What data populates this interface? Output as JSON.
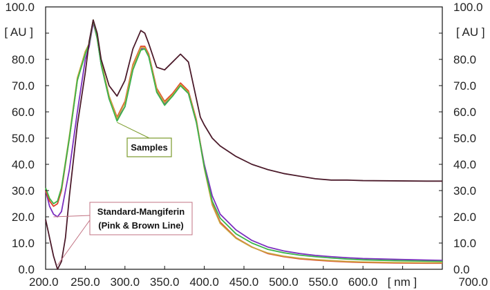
{
  "chart_data": {
    "type": "line",
    "xlim": [
      200,
      700
    ],
    "ylim": [
      0,
      100
    ],
    "x_ticks": [
      "200.0",
      "250.0",
      "300.0",
      "350.0",
      "400.0",
      "450.0",
      "500.0",
      "550.0",
      "600.0",
      "700.0"
    ],
    "x_tick_values": [
      200,
      250,
      300,
      350,
      400,
      450,
      500,
      550,
      600,
      700
    ],
    "y_ticks": [
      "0.0",
      "10.0",
      "20.0",
      "30.0",
      "40.0",
      "50.0",
      "60.0",
      "70.0",
      "80.0",
      "90.0",
      "100.0"
    ],
    "y_tick_values": [
      0,
      10,
      20,
      30,
      40,
      50,
      60,
      70,
      80,
      90,
      100
    ],
    "x_unit": "[ nm ]",
    "x_unit_position": 650,
    "y_unit_left": "[ AU ]",
    "y_unit_right": "[ AU ]",
    "y_unit_position": 90,
    "grid": false,
    "series": [
      {
        "color": "#4b1a2a",
        "x": [
          200,
          205,
          210,
          215,
          220,
          225,
          230,
          240,
          250,
          255,
          260,
          265,
          270,
          280,
          290,
          300,
          310,
          320,
          325,
          330,
          340,
          350,
          360,
          370,
          380,
          390,
          395,
          400,
          410,
          420,
          440,
          460,
          480,
          500,
          520,
          540,
          560,
          580,
          600,
          640,
          680,
          700
        ],
        "y": [
          19,
          12,
          5,
          0,
          3,
          12,
          28,
          55,
          75,
          87,
          95,
          90,
          80,
          70,
          66,
          72,
          84,
          91,
          90,
          86,
          77,
          76,
          79,
          82,
          79,
          65,
          58,
          55,
          50,
          47,
          43,
          40,
          38,
          36.5,
          35.5,
          34.5,
          34,
          34,
          33.8,
          33.7,
          33.6,
          33.6
        ]
      },
      {
        "color": "#7b2fbf",
        "x": [
          200,
          205,
          210,
          215,
          220,
          230,
          240,
          250,
          255,
          260,
          265,
          270,
          280,
          290,
          300,
          310,
          320,
          325,
          330,
          340,
          350,
          360,
          370,
          380,
          390,
          400,
          410,
          420,
          440,
          460,
          480,
          500,
          520,
          540,
          560,
          580,
          600,
          640,
          680,
          700
        ],
        "y": [
          30,
          24,
          21,
          20,
          22,
          38,
          60,
          80,
          85,
          94,
          88,
          78,
          65,
          57,
          62,
          76,
          84,
          84,
          81,
          68,
          63,
          66,
          70,
          67,
          56,
          40,
          28,
          21,
          15,
          11,
          8.5,
          7,
          6,
          5.3,
          4.8,
          4.4,
          4.1,
          3.8,
          3.5,
          3.4
        ]
      },
      {
        "color": "#e0402a",
        "x": [
          200,
          205,
          210,
          215,
          220,
          230,
          240,
          250,
          255,
          260,
          265,
          270,
          280,
          290,
          300,
          310,
          320,
          325,
          330,
          340,
          350,
          360,
          370,
          380,
          390,
          400,
          410,
          420,
          440,
          460,
          480,
          500,
          520,
          540,
          560,
          580,
          600,
          640,
          680,
          700
        ],
        "y": [
          30,
          26,
          24,
          25,
          30,
          50,
          72,
          83,
          86,
          95,
          88,
          79,
          66,
          58,
          64,
          78,
          85,
          85,
          82,
          69,
          64,
          67,
          71,
          68,
          57,
          39,
          25,
          18,
          12,
          8.5,
          6,
          4.8,
          4,
          3.5,
          3.1,
          2.8,
          2.6,
          2.4,
          2.3,
          2.3
        ]
      },
      {
        "color": "#c9a640",
        "x": [
          200,
          205,
          210,
          215,
          220,
          230,
          240,
          250,
          255,
          260,
          265,
          270,
          280,
          290,
          300,
          310,
          320,
          325,
          330,
          340,
          350,
          360,
          370,
          380,
          390,
          400,
          410,
          420,
          440,
          460,
          480,
          500,
          520,
          540,
          560,
          580,
          600,
          640,
          680,
          700
        ],
        "y": [
          31,
          27,
          25,
          26,
          31,
          51,
          73,
          83,
          86,
          95,
          88,
          79,
          66,
          57.5,
          63.5,
          77.5,
          84.5,
          84.5,
          81.5,
          68.5,
          63.5,
          66.5,
          70.5,
          67.5,
          56.5,
          38.5,
          24.5,
          17.5,
          11.8,
          8.4,
          6.2,
          5,
          4.2,
          3.7,
          3.3,
          3,
          2.8,
          2.6,
          2.5,
          2.5
        ]
      },
      {
        "color": "#3cb54a",
        "x": [
          200,
          205,
          210,
          215,
          220,
          230,
          240,
          250,
          255,
          260,
          265,
          270,
          280,
          290,
          300,
          310,
          320,
          325,
          330,
          340,
          350,
          360,
          370,
          380,
          390,
          400,
          410,
          420,
          440,
          460,
          480,
          500,
          520,
          540,
          560,
          580,
          600,
          640,
          680,
          700
        ],
        "y": [
          31,
          27,
          25,
          26,
          31,
          50,
          72,
          82,
          86,
          95,
          88,
          78,
          65,
          56.5,
          62,
          76,
          83.5,
          84,
          81,
          67.5,
          62.5,
          66,
          70,
          67,
          56,
          39,
          26,
          19.5,
          13.5,
          10,
          7.6,
          6.3,
          5.4,
          4.8,
          4.3,
          3.9,
          3.6,
          3.3,
          3.1,
          3
        ]
      }
    ],
    "annotations": [
      {
        "text": "Samples",
        "box_color": "#7a9a2a",
        "point_to": [
          [
            290,
            56
          ]
        ]
      },
      {
        "text": [
          "Standard-Mangiferin",
          "(Pink & Brown Line)"
        ],
        "box_color": "#c07080",
        "point_to": [
          [
            210,
            20
          ],
          [
            215,
            0
          ]
        ]
      }
    ]
  }
}
